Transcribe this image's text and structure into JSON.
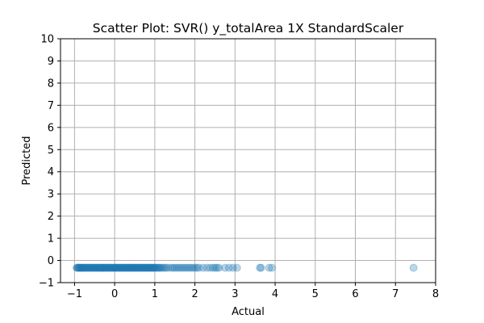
{
  "chart_data": {
    "type": "scatter",
    "title": "Scatter Plot: SVR() y_totalArea 1X StandardScaler",
    "xlabel": "Actual",
    "ylabel": "Predicted",
    "xlim": [
      -1.35,
      8.0
    ],
    "ylim": [
      -1,
      10
    ],
    "xticks": [
      -1,
      0,
      1,
      2,
      3,
      4,
      5,
      6,
      7,
      8
    ],
    "yticks": [
      -1,
      0,
      1,
      2,
      3,
      4,
      5,
      6,
      7,
      8,
      9,
      10
    ],
    "xtick_labels": [
      "−1",
      "0",
      "1",
      "2",
      "3",
      "4",
      "5",
      "6",
      "7",
      "8"
    ],
    "ytick_labels": [
      "−1",
      "0",
      "1",
      "2",
      "3",
      "4",
      "5",
      "6",
      "7",
      "8",
      "9",
      "10"
    ],
    "grid": true,
    "marker_color": "#1f77b4",
    "marker_alpha": 0.3,
    "series": [
      {
        "points": [
          [
            -0.95,
            -0.33
          ],
          [
            -0.93,
            -0.33
          ],
          [
            -0.91,
            -0.33
          ],
          [
            -0.9,
            -0.33
          ],
          [
            -0.88,
            -0.33
          ],
          [
            -0.87,
            -0.33
          ],
          [
            -0.85,
            -0.33
          ],
          [
            -0.83,
            -0.33
          ],
          [
            -0.81,
            -0.33
          ],
          [
            -0.8,
            -0.33
          ],
          [
            -0.78,
            -0.33
          ],
          [
            -0.76,
            -0.33
          ],
          [
            -0.74,
            -0.33
          ],
          [
            -0.72,
            -0.33
          ],
          [
            -0.7,
            -0.33
          ],
          [
            -0.68,
            -0.33
          ],
          [
            -0.66,
            -0.33
          ],
          [
            -0.64,
            -0.33
          ],
          [
            -0.62,
            -0.33
          ],
          [
            -0.6,
            -0.33
          ],
          [
            -0.58,
            -0.33
          ],
          [
            -0.56,
            -0.33
          ],
          [
            -0.54,
            -0.33
          ],
          [
            -0.52,
            -0.33
          ],
          [
            -0.5,
            -0.33
          ],
          [
            -0.48,
            -0.33
          ],
          [
            -0.46,
            -0.33
          ],
          [
            -0.44,
            -0.33
          ],
          [
            -0.42,
            -0.33
          ],
          [
            -0.4,
            -0.33
          ],
          [
            -0.38,
            -0.33
          ],
          [
            -0.36,
            -0.33
          ],
          [
            -0.34,
            -0.33
          ],
          [
            -0.32,
            -0.33
          ],
          [
            -0.3,
            -0.33
          ],
          [
            -0.28,
            -0.33
          ],
          [
            -0.26,
            -0.33
          ],
          [
            -0.24,
            -0.33
          ],
          [
            -0.22,
            -0.33
          ],
          [
            -0.2,
            -0.33
          ],
          [
            -0.18,
            -0.33
          ],
          [
            -0.16,
            -0.33
          ],
          [
            -0.14,
            -0.33
          ],
          [
            -0.12,
            -0.33
          ],
          [
            -0.1,
            -0.33
          ],
          [
            -0.08,
            -0.33
          ],
          [
            -0.06,
            -0.33
          ],
          [
            -0.04,
            -0.33
          ],
          [
            -0.02,
            -0.33
          ],
          [
            0.0,
            -0.33
          ],
          [
            0.02,
            -0.33
          ],
          [
            0.04,
            -0.33
          ],
          [
            0.06,
            -0.33
          ],
          [
            0.08,
            -0.33
          ],
          [
            0.1,
            -0.33
          ],
          [
            0.12,
            -0.33
          ],
          [
            0.14,
            -0.33
          ],
          [
            0.16,
            -0.33
          ],
          [
            0.18,
            -0.33
          ],
          [
            0.2,
            -0.33
          ],
          [
            0.22,
            -0.33
          ],
          [
            0.24,
            -0.33
          ],
          [
            0.26,
            -0.33
          ],
          [
            0.28,
            -0.33
          ],
          [
            0.3,
            -0.33
          ],
          [
            0.32,
            -0.33
          ],
          [
            0.34,
            -0.33
          ],
          [
            0.36,
            -0.33
          ],
          [
            0.38,
            -0.33
          ],
          [
            0.4,
            -0.33
          ],
          [
            0.42,
            -0.33
          ],
          [
            0.44,
            -0.33
          ],
          [
            0.46,
            -0.33
          ],
          [
            0.48,
            -0.33
          ],
          [
            0.5,
            -0.33
          ],
          [
            0.52,
            -0.33
          ],
          [
            0.54,
            -0.33
          ],
          [
            0.56,
            -0.33
          ],
          [
            0.58,
            -0.33
          ],
          [
            0.6,
            -0.33
          ],
          [
            0.62,
            -0.33
          ],
          [
            0.64,
            -0.33
          ],
          [
            0.66,
            -0.33
          ],
          [
            0.68,
            -0.33
          ],
          [
            0.7,
            -0.33
          ],
          [
            0.72,
            -0.33
          ],
          [
            0.74,
            -0.33
          ],
          [
            0.76,
            -0.33
          ],
          [
            0.78,
            -0.33
          ],
          [
            0.8,
            -0.33
          ],
          [
            0.82,
            -0.33
          ],
          [
            0.84,
            -0.33
          ],
          [
            0.86,
            -0.33
          ],
          [
            0.88,
            -0.33
          ],
          [
            0.9,
            -0.33
          ],
          [
            0.92,
            -0.33
          ],
          [
            0.94,
            -0.33
          ],
          [
            0.96,
            -0.33
          ],
          [
            0.98,
            -0.33
          ],
          [
            1.0,
            -0.33
          ],
          [
            1.02,
            -0.33
          ],
          [
            1.05,
            -0.33
          ],
          [
            1.08,
            -0.33
          ],
          [
            1.1,
            -0.33
          ],
          [
            1.13,
            -0.33
          ],
          [
            1.16,
            -0.33
          ],
          [
            1.2,
            -0.33
          ],
          [
            1.24,
            -0.33
          ],
          [
            1.28,
            -0.33
          ],
          [
            1.33,
            -0.33
          ],
          [
            1.4,
            -0.33
          ],
          [
            1.45,
            -0.33
          ],
          [
            1.5,
            -0.33
          ],
          [
            1.55,
            -0.33
          ],
          [
            1.6,
            -0.33
          ],
          [
            1.65,
            -0.33
          ],
          [
            1.7,
            -0.33
          ],
          [
            1.75,
            -0.33
          ],
          [
            1.8,
            -0.33
          ],
          [
            1.85,
            -0.33
          ],
          [
            1.9,
            -0.33
          ],
          [
            1.95,
            -0.33
          ],
          [
            2.0,
            -0.33
          ],
          [
            2.05,
            -0.33
          ],
          [
            2.1,
            -0.33
          ],
          [
            2.2,
            -0.33
          ],
          [
            2.3,
            -0.33
          ],
          [
            2.38,
            -0.33
          ],
          [
            2.45,
            -0.33
          ],
          [
            2.5,
            -0.33
          ],
          [
            2.55,
            -0.33
          ],
          [
            2.6,
            -0.33
          ],
          [
            2.75,
            -0.33
          ],
          [
            2.85,
            -0.33
          ],
          [
            2.95,
            -0.33
          ],
          [
            3.05,
            -0.33
          ],
          [
            3.62,
            -0.33
          ],
          [
            3.65,
            -0.33
          ],
          [
            3.85,
            -0.33
          ],
          [
            3.92,
            -0.33
          ],
          [
            7.45,
            -0.33
          ]
        ]
      }
    ]
  }
}
